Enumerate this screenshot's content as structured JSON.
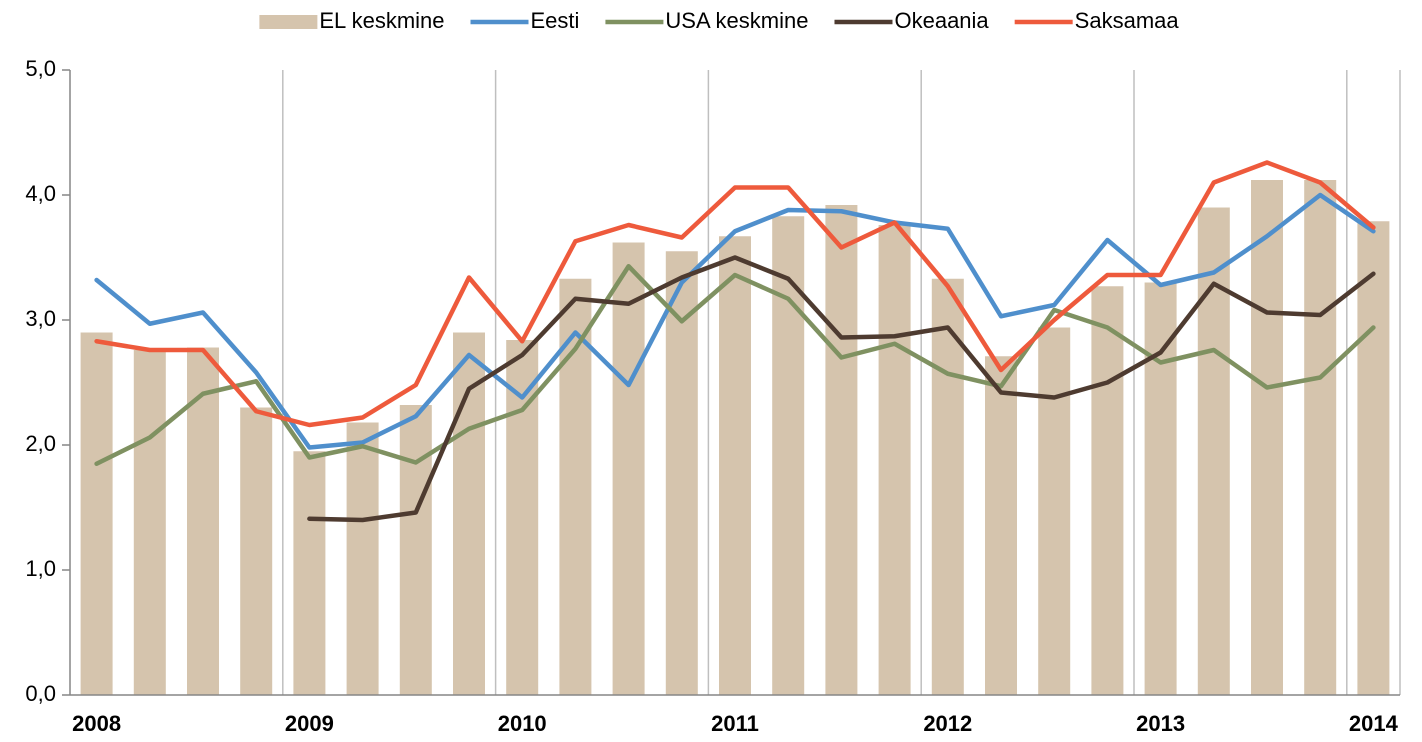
{
  "chart_data": {
    "type": "combo",
    "categories": [
      "2008",
      null,
      null,
      null,
      "2009",
      null,
      null,
      null,
      "2010",
      null,
      null,
      null,
      "2011",
      null,
      null,
      null,
      "2012",
      null,
      null,
      null,
      "2013",
      null,
      null,
      null,
      "2014"
    ],
    "series": [
      {
        "name": "EL keskmine",
        "type": "bar",
        "color": "#d5c4ad",
        "values": [
          2.9,
          2.76,
          2.78,
          2.3,
          1.95,
          2.18,
          2.32,
          2.9,
          2.84,
          3.33,
          3.62,
          3.55,
          3.67,
          3.83,
          3.92,
          3.76,
          3.33,
          2.71,
          2.94,
          3.27,
          3.3,
          3.9,
          4.12,
          4.12,
          3.79
        ]
      },
      {
        "name": "Eesti",
        "type": "line",
        "color": "#4f8fcc",
        "values": [
          3.32,
          2.97,
          3.06,
          2.58,
          1.98,
          2.02,
          2.23,
          2.72,
          2.38,
          2.9,
          2.48,
          3.3,
          3.71,
          3.88,
          3.87,
          3.78,
          3.73,
          3.03,
          3.12,
          3.64,
          3.28,
          3.38,
          3.67,
          4.0,
          3.71
        ]
      },
      {
        "name": "USA keskmine",
        "type": "line",
        "color": "#7f9161",
        "values": [
          1.85,
          2.06,
          2.41,
          2.51,
          1.9,
          1.99,
          1.86,
          2.13,
          2.28,
          2.77,
          3.43,
          2.99,
          3.36,
          3.17,
          2.7,
          2.81,
          2.57,
          2.47,
          3.08,
          2.94,
          2.66,
          2.76,
          2.46,
          2.54,
          2.94
        ]
      },
      {
        "name": "Okeaania",
        "type": "line",
        "color": "#4e3b30",
        "values": [
          null,
          null,
          null,
          null,
          1.41,
          1.4,
          1.46,
          2.45,
          2.72,
          3.17,
          3.13,
          3.34,
          3.5,
          3.33,
          2.86,
          2.87,
          2.94,
          2.42,
          2.38,
          2.5,
          2.74,
          3.29,
          3.06,
          3.04,
          3.37
        ]
      },
      {
        "name": "Saksamaa",
        "type": "line",
        "color": "#ee5a3c",
        "values": [
          2.83,
          2.76,
          2.76,
          2.27,
          2.16,
          2.22,
          2.48,
          3.34,
          2.83,
          3.63,
          3.76,
          3.66,
          4.06,
          4.06,
          3.58,
          3.78,
          3.27,
          2.6,
          3.0,
          3.36,
          3.36,
          4.1,
          4.26,
          4.1,
          3.74
        ]
      }
    ],
    "ylim": [
      0,
      5
    ],
    "yticks": [
      {
        "value": 0,
        "label": "0,0"
      },
      {
        "value": 1,
        "label": "1,0"
      },
      {
        "value": 2,
        "label": "2,0"
      },
      {
        "value": 3,
        "label": "3,0"
      },
      {
        "value": 4,
        "label": "4,0"
      },
      {
        "value": 5,
        "label": "5,0"
      }
    ],
    "legend": "top"
  }
}
